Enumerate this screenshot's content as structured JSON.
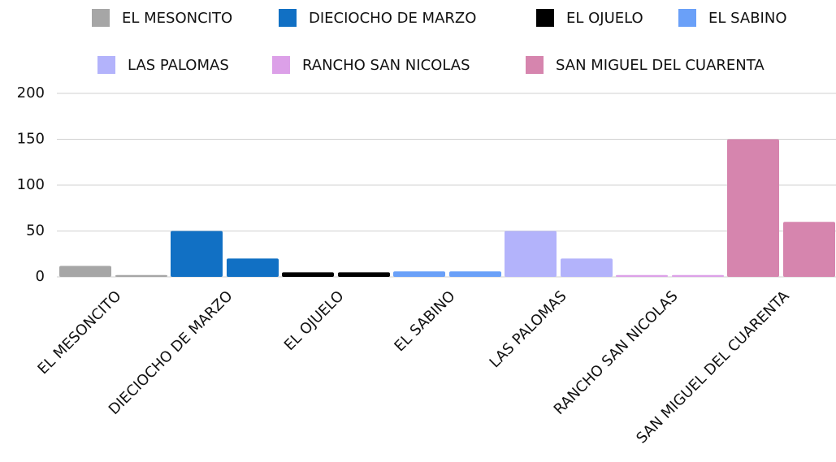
{
  "chart_data": {
    "type": "bar",
    "categories": [
      "EL MESONCITO",
      "DIECIOCHO DE MARZO",
      "EL OJUELO",
      "EL SABINO",
      "LAS PALOMAS",
      "RANCHO SAN NICOLAS",
      "SAN MIGUEL DEL CUARENTA"
    ],
    "colors": [
      "#a6a6a6",
      "#1170c4",
      "#000000",
      "#6aa0f8",
      "#b3b3fb",
      "#dca0e8",
      "#d685ae"
    ],
    "series": [
      {
        "values": [
          12,
          50,
          5,
          6,
          50,
          2,
          150
        ]
      },
      {
        "values": [
          2,
          20,
          5,
          6,
          20,
          2,
          60
        ]
      }
    ],
    "ylim": [
      0,
      200
    ],
    "yticks": [
      0,
      50,
      100,
      150,
      200
    ],
    "grid": true,
    "legend": "top"
  }
}
